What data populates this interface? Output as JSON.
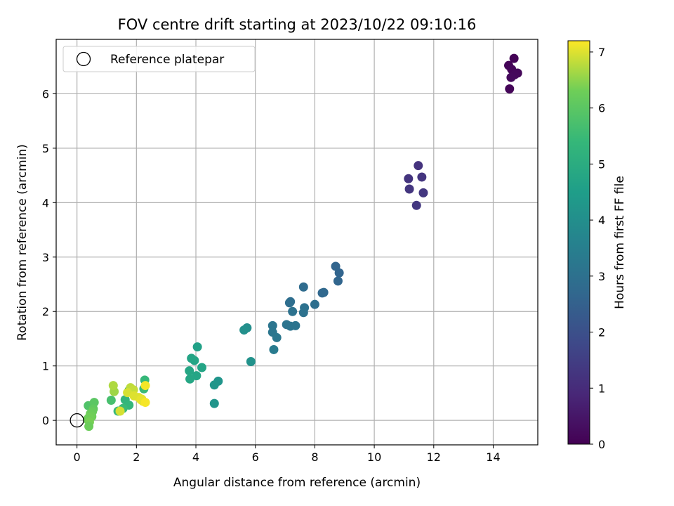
{
  "chart_data": {
    "type": "scatter",
    "title": "FOV centre drift starting at 2023/10/22 09:10:16",
    "xlabel": "Angular distance from reference (arcmin)",
    "ylabel": "Rotation from reference (arcmin)",
    "xlim": [
      -0.7,
      15.5
    ],
    "ylim": [
      -0.45,
      7.0
    ],
    "xticks": [
      0,
      2,
      4,
      6,
      8,
      10,
      12,
      14
    ],
    "yticks": [
      0,
      1,
      2,
      3,
      4,
      5,
      6
    ],
    "grid": true,
    "legend": {
      "placement": "top-left",
      "entries": [
        {
          "label": "Reference platepar",
          "marker": "open-circle"
        }
      ]
    },
    "reference_point": {
      "x": 0,
      "y": 0
    },
    "colorbar": {
      "label": "Hours from first FF file",
      "range": [
        0,
        7.2
      ],
      "ticks": [
        0,
        1,
        2,
        3,
        4,
        5,
        6,
        7
      ],
      "colormap": "viridis"
    },
    "points": [
      {
        "x": 14.7,
        "y": 6.65,
        "c": 0.05
      },
      {
        "x": 14.52,
        "y": 6.52,
        "c": 0.08
      },
      {
        "x": 14.62,
        "y": 6.45,
        "c": 0.12
      },
      {
        "x": 14.82,
        "y": 6.38,
        "c": 0.15
      },
      {
        "x": 14.72,
        "y": 6.35,
        "c": 0.18
      },
      {
        "x": 14.6,
        "y": 6.3,
        "c": 0.2
      },
      {
        "x": 14.55,
        "y": 6.09,
        "c": 0.1
      },
      {
        "x": 11.48,
        "y": 4.68,
        "c": 1.2
      },
      {
        "x": 11.15,
        "y": 4.44,
        "c": 1.22
      },
      {
        "x": 11.6,
        "y": 4.47,
        "c": 1.25
      },
      {
        "x": 11.18,
        "y": 4.25,
        "c": 1.28
      },
      {
        "x": 11.65,
        "y": 4.18,
        "c": 1.3
      },
      {
        "x": 11.42,
        "y": 3.95,
        "c": 1.32
      },
      {
        "x": 8.7,
        "y": 2.83,
        "c": 2.6
      },
      {
        "x": 8.82,
        "y": 2.71,
        "c": 2.62
      },
      {
        "x": 8.78,
        "y": 2.56,
        "c": 2.65
      },
      {
        "x": 8.25,
        "y": 2.34,
        "c": 2.7
      },
      {
        "x": 8.3,
        "y": 2.35,
        "c": 2.72
      },
      {
        "x": 7.62,
        "y": 2.45,
        "c": 2.85
      },
      {
        "x": 7.18,
        "y": 2.18,
        "c": 2.9
      },
      {
        "x": 7.15,
        "y": 2.16,
        "c": 2.92
      },
      {
        "x": 8.0,
        "y": 2.13,
        "c": 2.95
      },
      {
        "x": 7.65,
        "y": 2.07,
        "c": 3.0
      },
      {
        "x": 7.25,
        "y": 2.0,
        "c": 3.05
      },
      {
        "x": 7.62,
        "y": 1.98,
        "c": 3.05
      },
      {
        "x": 7.05,
        "y": 1.76,
        "c": 3.1
      },
      {
        "x": 7.18,
        "y": 1.73,
        "c": 3.12
      },
      {
        "x": 7.35,
        "y": 1.74,
        "c": 3.12
      },
      {
        "x": 6.58,
        "y": 1.74,
        "c": 3.15
      },
      {
        "x": 6.58,
        "y": 1.62,
        "c": 3.2
      },
      {
        "x": 6.72,
        "y": 1.52,
        "c": 3.22
      },
      {
        "x": 6.62,
        "y": 1.3,
        "c": 3.35
      },
      {
        "x": 5.72,
        "y": 1.7,
        "c": 4.0
      },
      {
        "x": 5.62,
        "y": 1.66,
        "c": 4.05
      },
      {
        "x": 5.85,
        "y": 1.08,
        "c": 4.1
      },
      {
        "x": 4.75,
        "y": 0.72,
        "c": 4.2
      },
      {
        "x": 4.62,
        "y": 0.65,
        "c": 4.25
      },
      {
        "x": 4.62,
        "y": 0.31,
        "c": 4.2
      },
      {
        "x": 4.05,
        "y": 1.35,
        "c": 4.6
      },
      {
        "x": 3.85,
        "y": 1.14,
        "c": 4.7
      },
      {
        "x": 3.95,
        "y": 1.1,
        "c": 4.75
      },
      {
        "x": 4.2,
        "y": 0.97,
        "c": 4.7
      },
      {
        "x": 3.78,
        "y": 0.91,
        "c": 4.8
      },
      {
        "x": 4.02,
        "y": 0.82,
        "c": 4.75
      },
      {
        "x": 3.8,
        "y": 0.76,
        "c": 4.8
      },
      {
        "x": 1.75,
        "y": 0.55,
        "c": 5.2
      },
      {
        "x": 1.62,
        "y": 0.38,
        "c": 5.3
      },
      {
        "x": 1.75,
        "y": 0.28,
        "c": 5.35
      },
      {
        "x": 1.55,
        "y": 0.22,
        "c": 5.5
      },
      {
        "x": 1.38,
        "y": 0.17,
        "c": 5.45
      },
      {
        "x": 2.28,
        "y": 0.74,
        "c": 5.4
      },
      {
        "x": 2.25,
        "y": 0.58,
        "c": 5.5
      },
      {
        "x": 1.15,
        "y": 0.37,
        "c": 5.7
      },
      {
        "x": 0.38,
        "y": 0.27,
        "c": 5.85
      },
      {
        "x": 0.58,
        "y": 0.33,
        "c": 6.0
      },
      {
        "x": 0.55,
        "y": 0.21,
        "c": 6.1
      },
      {
        "x": 0.52,
        "y": 0.16,
        "c": 6.2
      },
      {
        "x": 0.45,
        "y": 0.12,
        "c": 6.25
      },
      {
        "x": 0.5,
        "y": 0.07,
        "c": 6.3
      },
      {
        "x": 0.4,
        "y": 0.05,
        "c": 6.32
      },
      {
        "x": 0.35,
        "y": 0.02,
        "c": 6.3
      },
      {
        "x": 0.42,
        "y": -0.03,
        "c": 6.35
      },
      {
        "x": 0.4,
        "y": -0.11,
        "c": 6.25
      },
      {
        "x": 1.25,
        "y": 0.53,
        "c": 6.6
      },
      {
        "x": 1.22,
        "y": 0.64,
        "c": 6.7
      },
      {
        "x": 1.8,
        "y": 0.6,
        "c": 6.8
      },
      {
        "x": 1.9,
        "y": 0.56,
        "c": 6.85
      },
      {
        "x": 1.7,
        "y": 0.51,
        "c": 6.95
      },
      {
        "x": 1.92,
        "y": 0.45,
        "c": 7.0
      },
      {
        "x": 2.08,
        "y": 0.42,
        "c": 7.0
      },
      {
        "x": 2.18,
        "y": 0.39,
        "c": 7.05
      },
      {
        "x": 2.22,
        "y": 0.35,
        "c": 7.1
      },
      {
        "x": 2.15,
        "y": 0.38,
        "c": 7.05
      },
      {
        "x": 2.3,
        "y": 0.33,
        "c": 7.15
      },
      {
        "x": 2.3,
        "y": 0.64,
        "c": 7.15
      },
      {
        "x": 1.45,
        "y": 0.17,
        "c": 6.95
      }
    ]
  }
}
